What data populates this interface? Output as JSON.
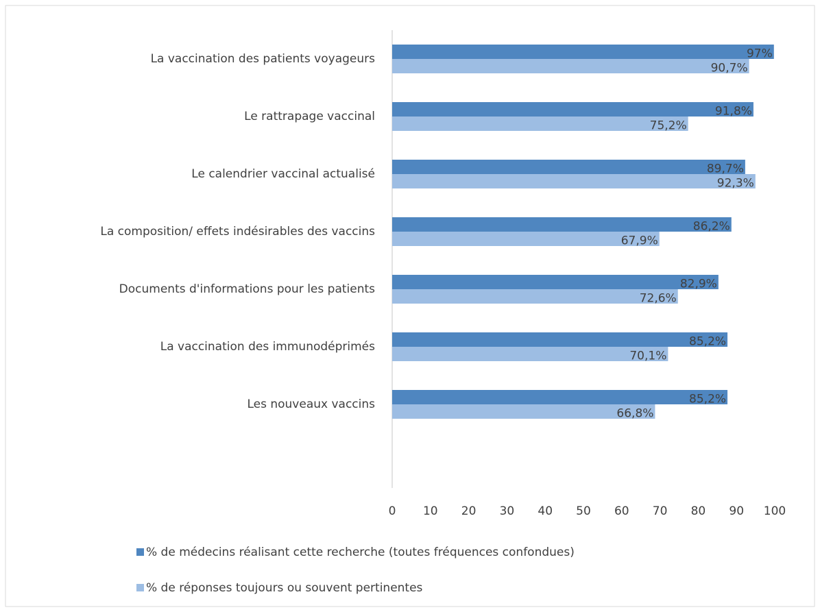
{
  "chart_data": {
    "type": "bar",
    "orientation": "horizontal",
    "categories": [
      "La vaccination des patients voyageurs",
      "Le rattrapage vaccinal",
      "Le calendrier vaccinal actualisé",
      "La composition/ effets indésirables des vaccins",
      "Documents d'informations pour les patients",
      "La vaccination des immunodéprimés",
      "Les nouveaux vaccins"
    ],
    "series": [
      {
        "name": "% de médecins réalisant cette recherche (toutes fréquences confondues)",
        "color": "#4f86c0",
        "values": [
          97,
          91.8,
          89.7,
          86.2,
          82.9,
          85.2,
          85.2
        ],
        "value_labels": [
          "97%",
          "91,8%",
          "89,7%",
          "86,2%",
          "82,9%",
          "85,2%",
          "85,2%"
        ]
      },
      {
        "name": "% de réponses toujours ou souvent pertinentes",
        "color": "#9dbde3",
        "values": [
          90.7,
          75.2,
          92.3,
          67.9,
          72.6,
          70.1,
          66.8
        ],
        "value_labels": [
          "90,7%",
          "75,2%",
          "92,3%",
          "67,9%",
          "72,6%",
          "70,1%",
          "66,8%"
        ]
      }
    ],
    "xlim": [
      0,
      100
    ],
    "xticks": [
      0,
      10,
      20,
      30,
      40,
      50,
      60,
      70,
      80,
      90,
      100
    ],
    "legend": "bottom"
  }
}
